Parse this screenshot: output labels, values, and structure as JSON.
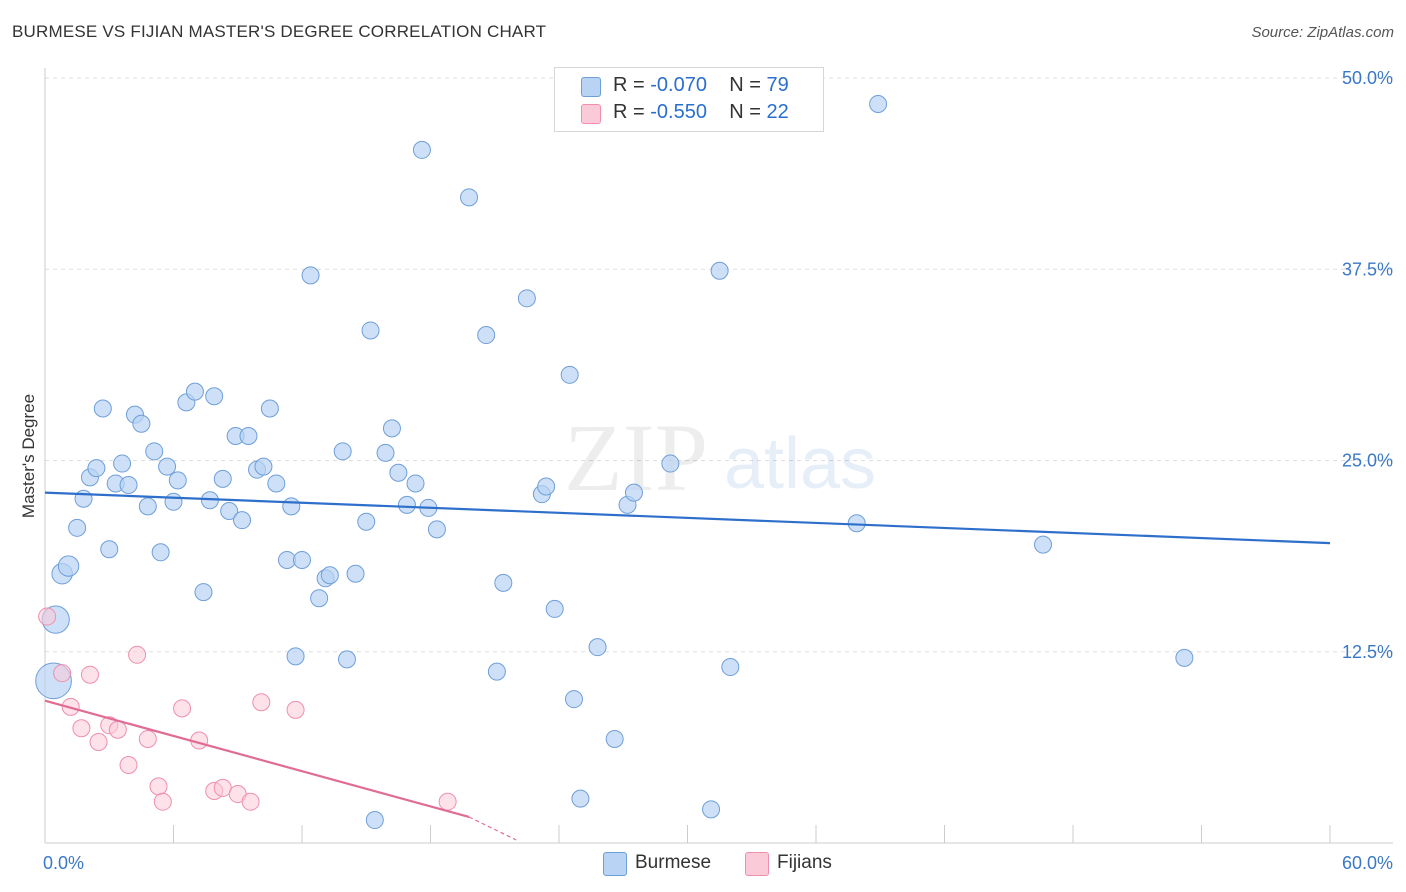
{
  "title": "BURMESE VS FIJIAN MASTER'S DEGREE CORRELATION CHART",
  "source": "Source: ZipAtlas.com",
  "watermark": {
    "zip": "ZIP",
    "atlas": "atlas"
  },
  "legend": {
    "burmese": {
      "r_label": "R = ",
      "r_value": "-0.070",
      "n_label": "N = ",
      "n_value": "79"
    },
    "fijians": {
      "r_label": "R = ",
      "r_value": "-0.550",
      "n_label": "N = ",
      "n_value": "22"
    }
  },
  "bottom_legend": {
    "burmese": "Burmese",
    "fijians": "Fijians"
  },
  "colors": {
    "burmese_fill": "#b8d3f3",
    "burmese_stroke": "#6f9fd8",
    "burmese_line": "#2e6fcc",
    "fijians_fill": "#fbcad8",
    "fijians_stroke": "#ee8fae",
    "fijians_line": "#e06c95",
    "grid": "#dddddd",
    "tick_text": "#3a78c7"
  },
  "chart_data": {
    "type": "scatter",
    "title": "BURMESE VS FIJIAN MASTER'S DEGREE CORRELATION CHART",
    "xlabel": "",
    "ylabel": "Master's Degree",
    "xlim": [
      0,
      60
    ],
    "ylim": [
      0,
      50
    ],
    "x_tick_labels": [
      "0.0%",
      "60.0%"
    ],
    "y_ticks": [
      12.5,
      25.0,
      37.5,
      50.0
    ],
    "y_tick_labels": [
      "12.5%",
      "25.0%",
      "37.5%",
      "50.0%"
    ],
    "grid": "horizontal dashed",
    "legend_position": "top-center",
    "series": [
      {
        "name": "Burmese",
        "R": -0.07,
        "N": 79,
        "trend": {
          "x": [
            0,
            60
          ],
          "y": [
            22.9,
            19.6
          ]
        },
        "points": [
          {
            "x": 0.5,
            "y": 14.6,
            "s": 1.6
          },
          {
            "x": 0.4,
            "y": 10.6,
            "s": 2.1
          },
          {
            "x": 0.8,
            "y": 17.6,
            "s": 1.2
          },
          {
            "x": 1.1,
            "y": 18.1,
            "s": 1.2
          },
          {
            "x": 1.5,
            "y": 20.6,
            "s": 1
          },
          {
            "x": 1.8,
            "y": 22.5,
            "s": 1
          },
          {
            "x": 2.1,
            "y": 23.9,
            "s": 1
          },
          {
            "x": 2.4,
            "y": 24.5,
            "s": 1
          },
          {
            "x": 2.7,
            "y": 28.4,
            "s": 1
          },
          {
            "x": 3.0,
            "y": 19.2,
            "s": 1
          },
          {
            "x": 3.3,
            "y": 23.5,
            "s": 1
          },
          {
            "x": 3.6,
            "y": 24.8,
            "s": 1
          },
          {
            "x": 3.9,
            "y": 23.4,
            "s": 1
          },
          {
            "x": 4.2,
            "y": 28.0,
            "s": 1
          },
          {
            "x": 4.5,
            "y": 27.4,
            "s": 1
          },
          {
            "x": 4.8,
            "y": 22.0,
            "s": 1
          },
          {
            "x": 5.1,
            "y": 25.6,
            "s": 1
          },
          {
            "x": 5.4,
            "y": 19.0,
            "s": 1
          },
          {
            "x": 5.7,
            "y": 24.6,
            "s": 1
          },
          {
            "x": 6.0,
            "y": 22.3,
            "s": 1
          },
          {
            "x": 6.2,
            "y": 23.7,
            "s": 1
          },
          {
            "x": 6.6,
            "y": 28.8,
            "s": 1
          },
          {
            "x": 7.0,
            "y": 29.5,
            "s": 1
          },
          {
            "x": 7.4,
            "y": 16.4,
            "s": 1
          },
          {
            "x": 7.7,
            "y": 22.4,
            "s": 1
          },
          {
            "x": 7.9,
            "y": 29.2,
            "s": 1
          },
          {
            "x": 8.3,
            "y": 23.8,
            "s": 1
          },
          {
            "x": 8.6,
            "y": 21.7,
            "s": 1
          },
          {
            "x": 8.9,
            "y": 26.6,
            "s": 1
          },
          {
            "x": 9.2,
            "y": 21.1,
            "s": 1
          },
          {
            "x": 9.5,
            "y": 26.6,
            "s": 1
          },
          {
            "x": 9.9,
            "y": 24.4,
            "s": 1
          },
          {
            "x": 10.2,
            "y": 24.6,
            "s": 1
          },
          {
            "x": 10.5,
            "y": 28.4,
            "s": 1
          },
          {
            "x": 10.8,
            "y": 23.5,
            "s": 1
          },
          {
            "x": 11.3,
            "y": 18.5,
            "s": 1
          },
          {
            "x": 11.5,
            "y": 22.0,
            "s": 1
          },
          {
            "x": 11.7,
            "y": 12.2,
            "s": 1
          },
          {
            "x": 12.0,
            "y": 18.5,
            "s": 1
          },
          {
            "x": 12.4,
            "y": 37.1,
            "s": 1
          },
          {
            "x": 12.8,
            "y": 16.0,
            "s": 1
          },
          {
            "x": 13.1,
            "y": 17.3,
            "s": 1
          },
          {
            "x": 13.3,
            "y": 17.5,
            "s": 1
          },
          {
            "x": 13.9,
            "y": 25.6,
            "s": 1
          },
          {
            "x": 14.1,
            "y": 12.0,
            "s": 1
          },
          {
            "x": 14.5,
            "y": 17.6,
            "s": 1
          },
          {
            "x": 15.0,
            "y": 21.0,
            "s": 1
          },
          {
            "x": 15.2,
            "y": 33.5,
            "s": 1
          },
          {
            "x": 15.4,
            "y": 1.5,
            "s": 1
          },
          {
            "x": 15.9,
            "y": 25.5,
            "s": 1
          },
          {
            "x": 16.2,
            "y": 27.1,
            "s": 1
          },
          {
            "x": 16.5,
            "y": 24.2,
            "s": 1
          },
          {
            "x": 16.9,
            "y": 22.1,
            "s": 1
          },
          {
            "x": 17.3,
            "y": 23.5,
            "s": 1
          },
          {
            "x": 17.6,
            "y": 45.3,
            "s": 1
          },
          {
            "x": 17.9,
            "y": 21.9,
            "s": 1
          },
          {
            "x": 18.3,
            "y": 20.5,
            "s": 1
          },
          {
            "x": 19.8,
            "y": 42.2,
            "s": 1
          },
          {
            "x": 20.6,
            "y": 33.2,
            "s": 1
          },
          {
            "x": 21.1,
            "y": 11.2,
            "s": 1
          },
          {
            "x": 21.4,
            "y": 17.0,
            "s": 1
          },
          {
            "x": 22.5,
            "y": 35.6,
            "s": 1
          },
          {
            "x": 23.2,
            "y": 22.8,
            "s": 1
          },
          {
            "x": 23.4,
            "y": 23.3,
            "s": 1
          },
          {
            "x": 23.8,
            "y": 15.3,
            "s": 1
          },
          {
            "x": 24.5,
            "y": 30.6,
            "s": 1
          },
          {
            "x": 24.7,
            "y": 9.4,
            "s": 1
          },
          {
            "x": 25.0,
            "y": 2.9,
            "s": 1
          },
          {
            "x": 25.8,
            "y": 12.8,
            "s": 1
          },
          {
            "x": 26.6,
            "y": 6.8,
            "s": 1
          },
          {
            "x": 27.2,
            "y": 22.1,
            "s": 1
          },
          {
            "x": 27.5,
            "y": 22.9,
            "s": 1
          },
          {
            "x": 29.2,
            "y": 24.8,
            "s": 1
          },
          {
            "x": 31.1,
            "y": 2.2,
            "s": 1
          },
          {
            "x": 31.5,
            "y": 37.4,
            "s": 1
          },
          {
            "x": 32.0,
            "y": 11.5,
            "s": 1
          },
          {
            "x": 37.9,
            "y": 20.9,
            "s": 1
          },
          {
            "x": 38.9,
            "y": 48.3,
            "s": 1
          },
          {
            "x": 46.6,
            "y": 19.5,
            "s": 1
          },
          {
            "x": 53.2,
            "y": 12.1,
            "s": 1
          }
        ]
      },
      {
        "name": "Fijians",
        "R": -0.55,
        "N": 22,
        "trend": {
          "x": [
            0,
            19.8
          ],
          "y": [
            9.3,
            1.7
          ]
        },
        "trend_dashed": {
          "x": [
            19.8,
            22.0
          ],
          "y": [
            1.7,
            0.2
          ]
        },
        "points": [
          {
            "x": 0.1,
            "y": 14.8,
            "s": 1
          },
          {
            "x": 0.8,
            "y": 11.1,
            "s": 1
          },
          {
            "x": 1.2,
            "y": 8.9,
            "s": 1
          },
          {
            "x": 1.7,
            "y": 7.5,
            "s": 1
          },
          {
            "x": 2.1,
            "y": 11.0,
            "s": 1
          },
          {
            "x": 2.5,
            "y": 6.6,
            "s": 1
          },
          {
            "x": 3.0,
            "y": 7.7,
            "s": 1
          },
          {
            "x": 3.4,
            "y": 7.4,
            "s": 1
          },
          {
            "x": 3.9,
            "y": 5.1,
            "s": 1
          },
          {
            "x": 4.3,
            "y": 12.3,
            "s": 1
          },
          {
            "x": 4.8,
            "y": 6.8,
            "s": 1
          },
          {
            "x": 5.3,
            "y": 3.7,
            "s": 1
          },
          {
            "x": 5.5,
            "y": 2.7,
            "s": 1
          },
          {
            "x": 6.4,
            "y": 8.8,
            "s": 1
          },
          {
            "x": 7.2,
            "y": 6.7,
            "s": 1
          },
          {
            "x": 7.9,
            "y": 3.4,
            "s": 1
          },
          {
            "x": 8.3,
            "y": 3.6,
            "s": 1
          },
          {
            "x": 9.0,
            "y": 3.2,
            "s": 1
          },
          {
            "x": 9.6,
            "y": 2.7,
            "s": 1
          },
          {
            "x": 10.1,
            "y": 9.2,
            "s": 1
          },
          {
            "x": 11.7,
            "y": 8.7,
            "s": 1
          },
          {
            "x": 18.8,
            "y": 2.7,
            "s": 1
          }
        ]
      }
    ]
  }
}
